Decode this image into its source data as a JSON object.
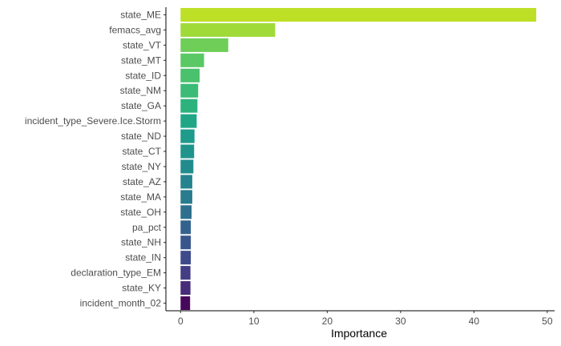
{
  "chart_data": {
    "type": "bar",
    "orientation": "horizontal",
    "categories": [
      "state_ME",
      "femacs_avg",
      "state_VT",
      "state_MT",
      "state_ID",
      "state_NM",
      "state_GA",
      "incident_type_Severe.Ice.Storm",
      "state_ND",
      "state_CT",
      "state_NY",
      "state_AZ",
      "state_MA",
      "state_OH",
      "pa_pct",
      "state_NH",
      "state_IN",
      "declaration_type_EM",
      "state_KY",
      "incident_month_02"
    ],
    "values": [
      48.5,
      12.9,
      6.5,
      3.2,
      2.6,
      2.4,
      2.3,
      2.2,
      1.9,
      1.85,
      1.75,
      1.6,
      1.6,
      1.5,
      1.4,
      1.4,
      1.4,
      1.35,
      1.35,
      1.3
    ],
    "colors": [
      "#bddf26",
      "#a0da39",
      "#6ece58",
      "#5ac864",
      "#4ac16d",
      "#3bbb75",
      "#2db27d",
      "#21a685",
      "#1e9b8a",
      "#1f948c",
      "#228c8d",
      "#25838e",
      "#297b8e",
      "#2e6f8e",
      "#33638d",
      "#39568c",
      "#3e4a89",
      "#433d84",
      "#472c7a",
      "#46085c"
    ],
    "xlabel": "Importance",
    "ylabel": "",
    "xlim": [
      -2,
      51
    ],
    "xticks": [
      0,
      10,
      20,
      30,
      40,
      50
    ],
    "grid": false,
    "legend": "none"
  }
}
